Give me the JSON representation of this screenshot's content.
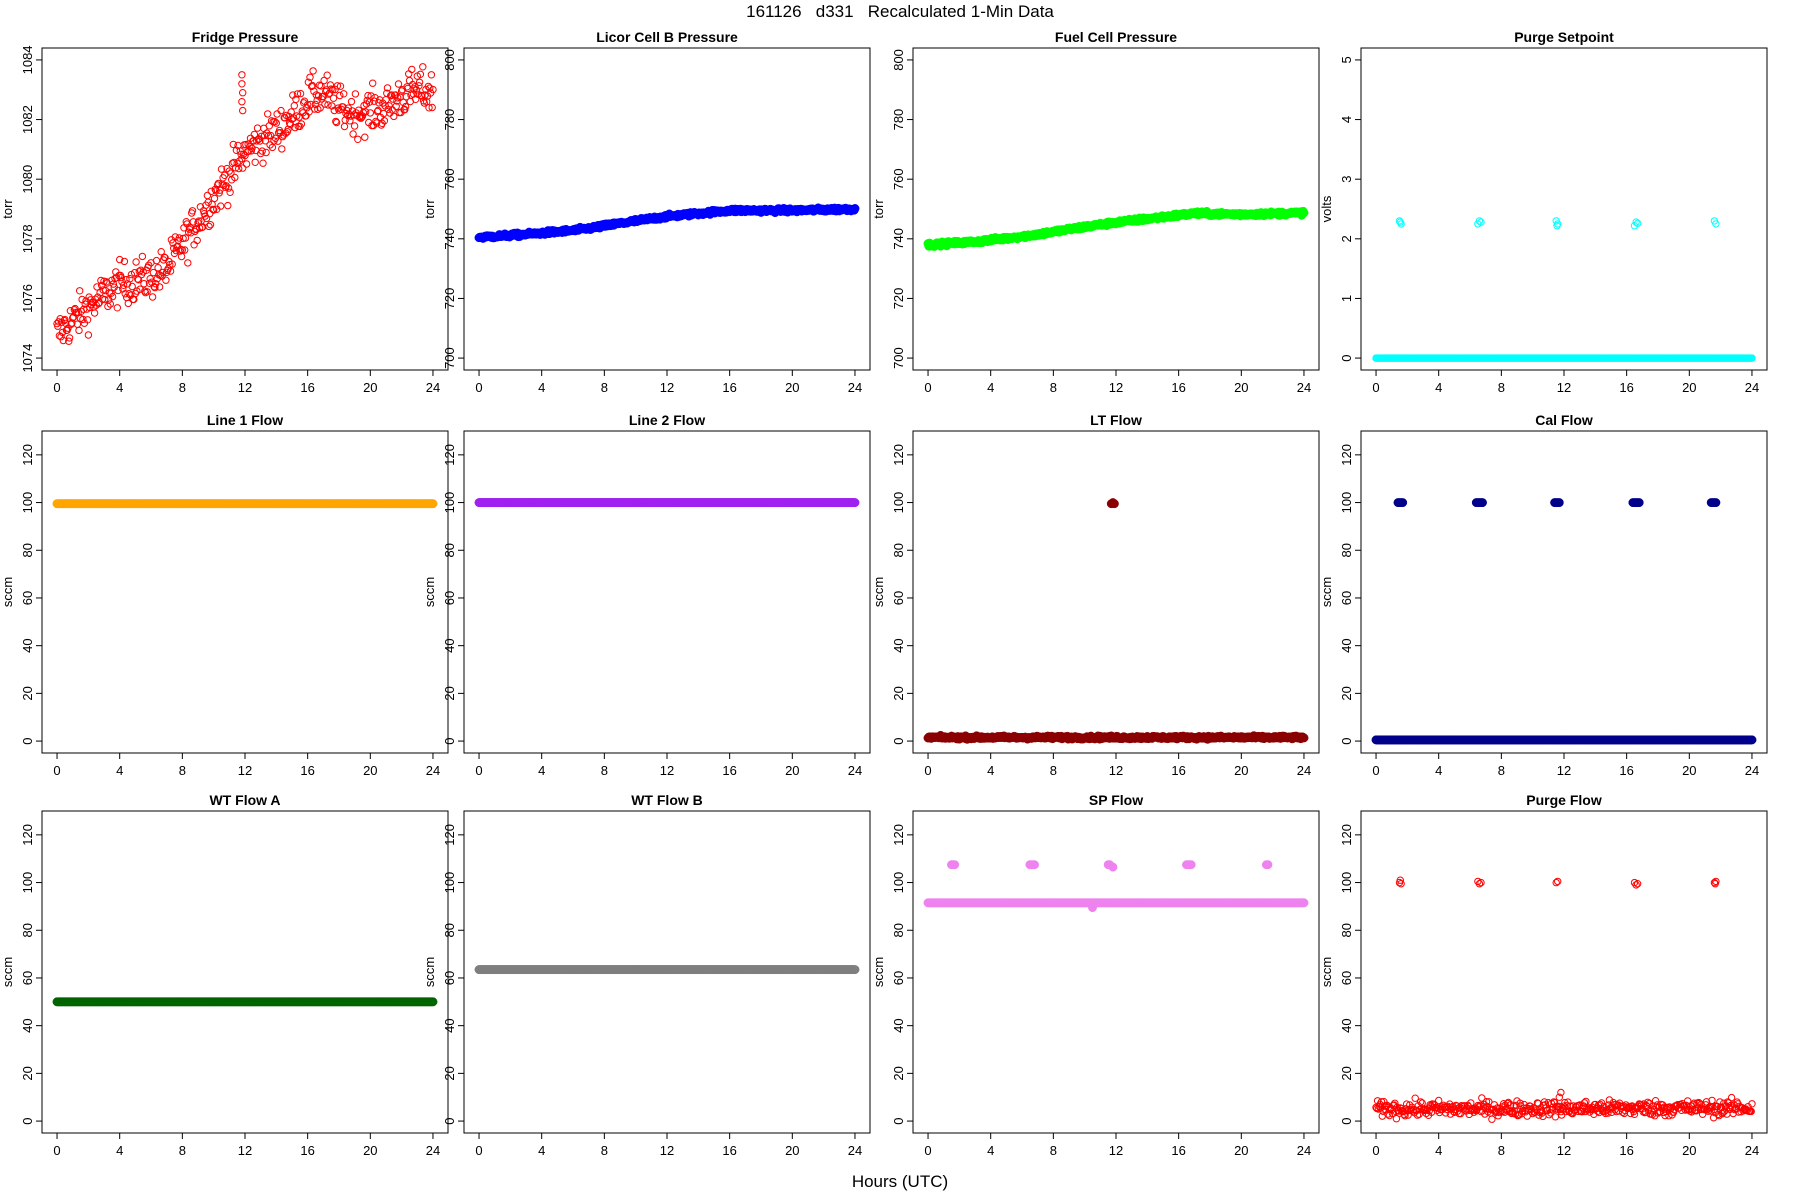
{
  "page": {
    "title": "161126   d331   Recalculated 1-Min Data",
    "x_common_label": "Hours (UTC)"
  },
  "chart_data": [
    {
      "type": "scatter",
      "title": "Fridge Pressure",
      "ylabel": "torr",
      "xlabel": "",
      "xlim": [
        0,
        24
      ],
      "xticks": [
        0,
        4,
        8,
        12,
        16,
        20,
        24
      ],
      "ylim": [
        1074,
        1084
      ],
      "yticks": [
        1074,
        1076,
        1078,
        1080,
        1082,
        1084
      ],
      "color": "#ff0000",
      "marker": "open-circle",
      "noise": 0.35,
      "trend": [
        [
          0,
          1074.8
        ],
        [
          2,
          1075.7
        ],
        [
          4,
          1076.5
        ],
        [
          6,
          1076.7
        ],
        [
          7,
          1077.0
        ],
        [
          8,
          1077.8
        ],
        [
          9,
          1078.6
        ],
        [
          10,
          1079.4
        ],
        [
          11,
          1080.1
        ],
        [
          12,
          1080.9
        ],
        [
          13,
          1081.3
        ],
        [
          14,
          1081.6
        ],
        [
          15,
          1082.1
        ],
        [
          16,
          1082.7
        ],
        [
          17,
          1082.9
        ],
        [
          18,
          1082.4
        ],
        [
          19,
          1082.2
        ],
        [
          20,
          1082.3
        ],
        [
          21,
          1082.4
        ],
        [
          22,
          1082.8
        ],
        [
          23,
          1083.0
        ],
        [
          24,
          1082.9
        ]
      ],
      "outliers": [
        [
          11.8,
          1083.5
        ],
        [
          11.8,
          1083.2
        ],
        [
          11.85,
          1082.9
        ],
        [
          11.8,
          1082.6
        ],
        [
          11.85,
          1082.3
        ]
      ]
    },
    {
      "type": "scatter",
      "title": "Licor Cell B Pressure",
      "ylabel": "torr",
      "xlabel": "",
      "xlim": [
        0,
        24
      ],
      "xticks": [
        0,
        4,
        8,
        12,
        16,
        20,
        24
      ],
      "ylim": [
        700,
        800
      ],
      "yticks": [
        700,
        720,
        740,
        760,
        780,
        800
      ],
      "color": "#0000ff",
      "marker": "filled-circle",
      "noise": 0.3,
      "trend": [
        [
          0,
          740.5
        ],
        [
          3,
          741.5
        ],
        [
          6,
          742.8
        ],
        [
          7,
          743.5
        ],
        [
          10,
          746
        ],
        [
          12,
          747.5
        ],
        [
          16,
          749.5
        ],
        [
          20,
          749.5
        ],
        [
          24,
          750
        ]
      ],
      "outliers": []
    },
    {
      "type": "scatter",
      "title": "Fuel Cell Pressure",
      "ylabel": "torr",
      "xlabel": "",
      "xlim": [
        0,
        24
      ],
      "xticks": [
        0,
        4,
        8,
        12,
        16,
        20,
        24
      ],
      "ylim": [
        700,
        800
      ],
      "yticks": [
        700,
        720,
        740,
        760,
        780,
        800
      ],
      "color": "#00ff00",
      "marker": "filled-circle",
      "noise": 0.3,
      "trend": [
        [
          0,
          738
        ],
        [
          3,
          739
        ],
        [
          6,
          740.8
        ],
        [
          7,
          741.5
        ],
        [
          10,
          744
        ],
        [
          12,
          745.5
        ],
        [
          17,
          748.5
        ],
        [
          20,
          748.2
        ],
        [
          24,
          748.7
        ]
      ],
      "outliers": []
    },
    {
      "type": "scatter",
      "title": "Purge Setpoint",
      "ylabel": "volts",
      "xlabel": "",
      "xlim": [
        0,
        24
      ],
      "xticks": [
        0,
        4,
        8,
        12,
        16,
        20,
        24
      ],
      "ylim": [
        0,
        5
      ],
      "yticks": [
        0,
        1,
        2,
        3,
        4,
        5
      ],
      "color": "#00ffff",
      "marker": "open-circle",
      "noise": 0,
      "trend": [
        [
          0,
          0
        ],
        [
          24,
          0
        ]
      ],
      "outliers": [
        [
          1.5,
          2.3
        ],
        [
          1.6,
          2.25
        ],
        [
          1.55,
          2.28
        ],
        [
          6.5,
          2.25
        ],
        [
          6.6,
          2.3
        ],
        [
          6.7,
          2.28
        ],
        [
          11.5,
          2.3
        ],
        [
          11.6,
          2.25
        ],
        [
          11.55,
          2.22
        ],
        [
          16.5,
          2.22
        ],
        [
          16.6,
          2.28
        ],
        [
          16.7,
          2.26
        ],
        [
          21.6,
          2.3
        ],
        [
          21.7,
          2.25
        ]
      ]
    },
    {
      "type": "scatter",
      "title": "Line 1 Flow",
      "ylabel": "sccm",
      "xlabel": "",
      "xlim": [
        0,
        24
      ],
      "xticks": [
        0,
        4,
        8,
        12,
        16,
        20,
        24
      ],
      "ylim": [
        0,
        125
      ],
      "yticks": [
        0,
        20,
        40,
        60,
        80,
        100,
        120
      ],
      "color": "#ffa500",
      "marker": "filled-circle",
      "noise": 0,
      "trend": [
        [
          0,
          99.5
        ],
        [
          24,
          99.5
        ]
      ],
      "outliers": []
    },
    {
      "type": "scatter",
      "title": "Line 2 Flow",
      "ylabel": "sccm",
      "xlabel": "",
      "xlim": [
        0,
        24
      ],
      "xticks": [
        0,
        4,
        8,
        12,
        16,
        20,
        24
      ],
      "ylim": [
        0,
        125
      ],
      "yticks": [
        0,
        20,
        40,
        60,
        80,
        100,
        120
      ],
      "color": "#a020f0",
      "marker": "filled-circle",
      "noise": 0,
      "trend": [
        [
          0,
          100
        ],
        [
          24,
          100
        ]
      ],
      "outliers": []
    },
    {
      "type": "scatter",
      "title": "LT Flow",
      "ylabel": "sccm",
      "xlabel": "",
      "xlim": [
        0,
        24
      ],
      "xticks": [
        0,
        4,
        8,
        12,
        16,
        20,
        24
      ],
      "ylim": [
        0,
        125
      ],
      "yticks": [
        0,
        20,
        40,
        60,
        80,
        100,
        120
      ],
      "color": "#8b0000",
      "marker": "filled-circle",
      "noise": 0.3,
      "trend": [
        [
          0,
          1.5
        ],
        [
          24,
          1.5
        ]
      ],
      "outliers": [
        [
          11.7,
          99.5
        ],
        [
          11.8,
          100
        ],
        [
          11.9,
          99.5
        ]
      ]
    },
    {
      "type": "scatter",
      "title": "Cal Flow",
      "ylabel": "sccm",
      "xlabel": "",
      "xlim": [
        0,
        24
      ],
      "xticks": [
        0,
        4,
        8,
        12,
        16,
        20,
        24
      ],
      "ylim": [
        0,
        125
      ],
      "yticks": [
        0,
        20,
        40,
        60,
        80,
        100,
        120
      ],
      "color": "#00008b",
      "marker": "filled-circle",
      "noise": 0,
      "trend": [
        [
          0,
          0.5
        ],
        [
          24,
          0.5
        ]
      ],
      "outliers": [
        [
          1.4,
          100
        ],
        [
          1.5,
          100
        ],
        [
          1.6,
          100
        ],
        [
          1.7,
          100
        ],
        [
          6.4,
          100
        ],
        [
          6.5,
          100
        ],
        [
          6.6,
          100
        ],
        [
          6.7,
          100
        ],
        [
          6.8,
          100
        ],
        [
          11.4,
          100
        ],
        [
          11.5,
          100
        ],
        [
          11.6,
          100
        ],
        [
          11.7,
          100
        ],
        [
          16.4,
          100
        ],
        [
          16.5,
          100
        ],
        [
          16.6,
          100
        ],
        [
          16.7,
          100
        ],
        [
          16.8,
          100
        ],
        [
          21.4,
          100
        ],
        [
          21.5,
          100
        ],
        [
          21.6,
          100
        ],
        [
          21.7,
          100
        ]
      ]
    },
    {
      "type": "scatter",
      "title": "WT Flow A",
      "ylabel": "sccm",
      "xlabel": "",
      "xlim": [
        0,
        24
      ],
      "xticks": [
        0,
        4,
        8,
        12,
        16,
        20,
        24
      ],
      "ylim": [
        0,
        125
      ],
      "yticks": [
        0,
        20,
        40,
        60,
        80,
        100,
        120
      ],
      "color": "#006400",
      "marker": "filled-circle",
      "noise": 0,
      "trend": [
        [
          0,
          50
        ],
        [
          24,
          50
        ]
      ],
      "outliers": []
    },
    {
      "type": "scatter",
      "title": "WT Flow B",
      "ylabel": "sccm",
      "xlabel": "",
      "xlim": [
        0,
        24
      ],
      "xticks": [
        0,
        4,
        8,
        12,
        16,
        20,
        24
      ],
      "ylim": [
        0,
        125
      ],
      "yticks": [
        0,
        20,
        40,
        60,
        80,
        100,
        120
      ],
      "color": "#7f7f7f",
      "marker": "filled-circle",
      "noise": 0,
      "trend": [
        [
          0,
          63.5
        ],
        [
          24,
          63.5
        ]
      ],
      "outliers": []
    },
    {
      "type": "scatter",
      "title": "SP Flow",
      "ylabel": "sccm",
      "xlabel": "",
      "xlim": [
        0,
        24
      ],
      "xticks": [
        0,
        4,
        8,
        12,
        16,
        20,
        24
      ],
      "ylim": [
        0,
        125
      ],
      "yticks": [
        0,
        20,
        40,
        60,
        80,
        100,
        120
      ],
      "color": "#ee82ee",
      "marker": "filled-circle",
      "noise": 0,
      "trend": [
        [
          0,
          91.5
        ],
        [
          24,
          91.5
        ]
      ],
      "outliers": [
        [
          1.5,
          107.5
        ],
        [
          1.6,
          107.5
        ],
        [
          1.7,
          107.5
        ],
        [
          6.5,
          107.5
        ],
        [
          6.6,
          107.5
        ],
        [
          6.7,
          107.5
        ],
        [
          6.8,
          107.5
        ],
        [
          10.5,
          89.5
        ],
        [
          11.5,
          107.5
        ],
        [
          11.6,
          107.5
        ],
        [
          11.8,
          106.5
        ],
        [
          16.5,
          107.5
        ],
        [
          16.6,
          107.5
        ],
        [
          16.7,
          107.5
        ],
        [
          16.8,
          107.5
        ],
        [
          21.6,
          107.5
        ],
        [
          21.7,
          107.5
        ]
      ]
    },
    {
      "type": "scatter",
      "title": "Purge Flow",
      "ylabel": "sccm",
      "xlabel": "",
      "xlim": [
        0,
        24
      ],
      "xticks": [
        0,
        4,
        8,
        12,
        16,
        20,
        24
      ],
      "ylim": [
        0,
        125
      ],
      "yticks": [
        0,
        20,
        40,
        60,
        80,
        100,
        120
      ],
      "color": "#ff0000",
      "marker": "open-circle",
      "noise": 1.6,
      "trend": [
        [
          0,
          5
        ],
        [
          24,
          5.5
        ]
      ],
      "outliers": [
        [
          1.5,
          100
        ],
        [
          1.6,
          99.5
        ],
        [
          1.55,
          101
        ],
        [
          6.5,
          100.5
        ],
        [
          6.6,
          99.5
        ],
        [
          6.7,
          100
        ],
        [
          11.5,
          100
        ],
        [
          11.6,
          100.5
        ],
        [
          11.7,
          10
        ],
        [
          11.8,
          12
        ],
        [
          16.5,
          100
        ],
        [
          16.6,
          99
        ],
        [
          16.7,
          99.5
        ],
        [
          21.6,
          100
        ],
        [
          21.7,
          100.5
        ],
        [
          21.65,
          99.5
        ]
      ]
    }
  ]
}
